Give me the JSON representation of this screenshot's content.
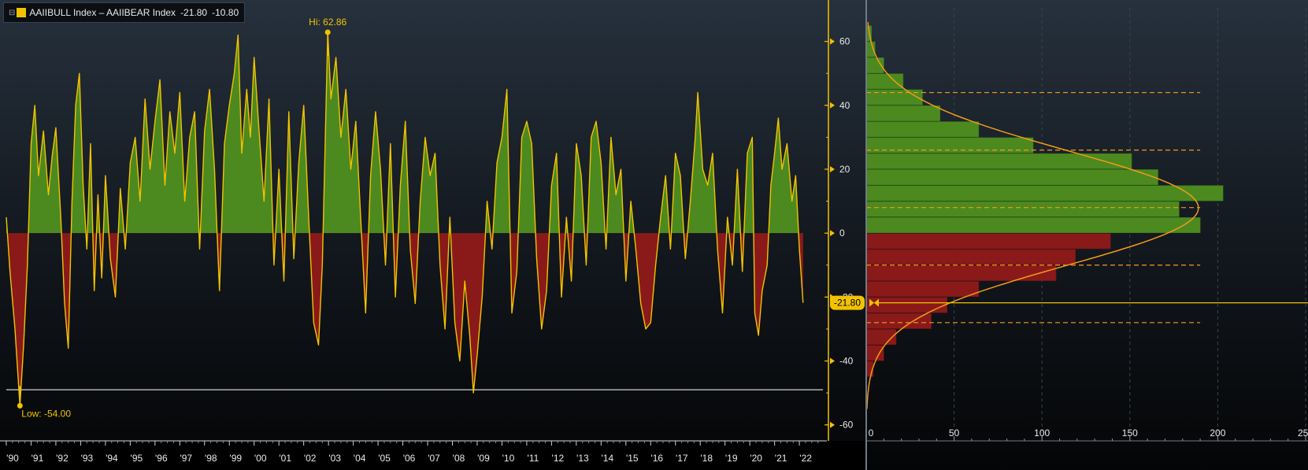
{
  "legend": {
    "expand_glyph": "⊟",
    "title": "AAIIBULL Index – AAIIBEAR Index",
    "last_value": "-21.80",
    "second_value": "-10.80",
    "swatch_color": "#f2c200"
  },
  "colors": {
    "series": "#f2c200",
    "positive_fill": "#4c8a1f",
    "negative_fill": "#8a1a1a",
    "curve": "#f29a1a",
    "axis": "#f2c200"
  },
  "chart_data": [
    {
      "type": "line",
      "series_name": "AAIIBULL Index – AAIIBEAR Index",
      "x_tick_labels": [
        "'90",
        "'91",
        "'92",
        "'93",
        "'94",
        "'95",
        "'96",
        "'97",
        "'98",
        "'99",
        "'00",
        "'01",
        "'02",
        "'03",
        "'04",
        "'05",
        "'06",
        "'07",
        "'08",
        "'09",
        "'10",
        "'11",
        "'12",
        "'13",
        "'14",
        "'15",
        "'16",
        "'17",
        "'18",
        "'19",
        "'20",
        "'21",
        "'22"
      ],
      "x_range": [
        1990.0,
        2022.0
      ],
      "ylim": [
        -65,
        70
      ],
      "y_ticks": [
        -60,
        -40,
        -20,
        0,
        20,
        40,
        60
      ],
      "y_tick_labels": [
        "-60",
        "-40",
        "-20",
        "0",
        "20",
        "40",
        "60"
      ],
      "fill_above_zero": true,
      "fill_below_zero": true,
      "annotations": [
        {
          "label": "Hi: 62.86",
          "x": 2002.97,
          "y": 62.86
        },
        {
          "label": "Low: -54.00",
          "x": 1990.55,
          "y": -54.0
        }
      ],
      "last_value": -21.8,
      "last_value_label": "-21.80",
      "reference_line_y": -49,
      "points": [
        [
          1990.0,
          5
        ],
        [
          1990.15,
          -12
        ],
        [
          1990.35,
          -30
        ],
        [
          1990.55,
          -54
        ],
        [
          1990.7,
          -35
        ],
        [
          1990.85,
          -10
        ],
        [
          1991.0,
          28
        ],
        [
          1991.15,
          40
        ],
        [
          1991.3,
          18
        ],
        [
          1991.5,
          32
        ],
        [
          1991.7,
          12
        ],
        [
          1991.85,
          24
        ],
        [
          1992.0,
          33
        ],
        [
          1992.2,
          5
        ],
        [
          1992.35,
          -22
        ],
        [
          1992.5,
          -36
        ],
        [
          1992.65,
          10
        ],
        [
          1992.8,
          40
        ],
        [
          1992.95,
          50
        ],
        [
          1993.1,
          15
        ],
        [
          1993.25,
          -5
        ],
        [
          1993.4,
          28
        ],
        [
          1993.55,
          -18
        ],
        [
          1993.7,
          12
        ],
        [
          1993.85,
          -14
        ],
        [
          1994.0,
          18
        ],
        [
          1994.2,
          -8
        ],
        [
          1994.4,
          -20
        ],
        [
          1994.6,
          14
        ],
        [
          1994.8,
          -5
        ],
        [
          1995.0,
          22
        ],
        [
          1995.2,
          30
        ],
        [
          1995.4,
          10
        ],
        [
          1995.6,
          42
        ],
        [
          1995.8,
          20
        ],
        [
          1996.0,
          35
        ],
        [
          1996.2,
          48
        ],
        [
          1996.4,
          15
        ],
        [
          1996.6,
          38
        ],
        [
          1996.8,
          25
        ],
        [
          1997.0,
          44
        ],
        [
          1997.2,
          10
        ],
        [
          1997.4,
          30
        ],
        [
          1997.6,
          38
        ],
        [
          1997.8,
          -5
        ],
        [
          1998.0,
          32
        ],
        [
          1998.2,
          45
        ],
        [
          1998.4,
          20
        ],
        [
          1998.6,
          -18
        ],
        [
          1998.8,
          28
        ],
        [
          1999.0,
          40
        ],
        [
          1999.2,
          50
        ],
        [
          1999.35,
          62
        ],
        [
          1999.5,
          25
        ],
        [
          1999.7,
          45
        ],
        [
          1999.85,
          30
        ],
        [
          2000.0,
          55
        ],
        [
          2000.2,
          32
        ],
        [
          2000.4,
          10
        ],
        [
          2000.6,
          42
        ],
        [
          2000.8,
          -10
        ],
        [
          2001.0,
          20
        ],
        [
          2001.2,
          -15
        ],
        [
          2001.4,
          38
        ],
        [
          2001.6,
          -8
        ],
        [
          2001.8,
          22
        ],
        [
          2002.0,
          40
        ],
        [
          2002.2,
          5
        ],
        [
          2002.4,
          -28
        ],
        [
          2002.6,
          -35
        ],
        [
          2002.75,
          -10
        ],
        [
          2002.97,
          62.86
        ],
        [
          2003.1,
          42
        ],
        [
          2003.3,
          55
        ],
        [
          2003.5,
          30
        ],
        [
          2003.7,
          45
        ],
        [
          2003.9,
          20
        ],
        [
          2004.1,
          35
        ],
        [
          2004.3,
          5
        ],
        [
          2004.5,
          -25
        ],
        [
          2004.7,
          18
        ],
        [
          2004.9,
          38
        ],
        [
          2005.1,
          20
        ],
        [
          2005.3,
          -10
        ],
        [
          2005.5,
          28
        ],
        [
          2005.7,
          -20
        ],
        [
          2005.9,
          15
        ],
        [
          2006.1,
          35
        ],
        [
          2006.3,
          -5
        ],
        [
          2006.5,
          -22
        ],
        [
          2006.7,
          10
        ],
        [
          2006.9,
          30
        ],
        [
          2007.1,
          18
        ],
        [
          2007.3,
          25
        ],
        [
          2007.5,
          -10
        ],
        [
          2007.7,
          -30
        ],
        [
          2007.9,
          5
        ],
        [
          2008.1,
          -28
        ],
        [
          2008.3,
          -40
        ],
        [
          2008.5,
          -15
        ],
        [
          2008.7,
          -32
        ],
        [
          2008.85,
          -50
        ],
        [
          2009.0,
          -38
        ],
        [
          2009.2,
          -20
        ],
        [
          2009.4,
          10
        ],
        [
          2009.6,
          -5
        ],
        [
          2009.8,
          22
        ],
        [
          2010.0,
          30
        ],
        [
          2010.2,
          45
        ],
        [
          2010.4,
          -25
        ],
        [
          2010.6,
          -12
        ],
        [
          2010.8,
          30
        ],
        [
          2011.0,
          35
        ],
        [
          2011.2,
          28
        ],
        [
          2011.4,
          -8
        ],
        [
          2011.6,
          -30
        ],
        [
          2011.8,
          -18
        ],
        [
          2012.0,
          15
        ],
        [
          2012.2,
          25
        ],
        [
          2012.4,
          -20
        ],
        [
          2012.6,
          5
        ],
        [
          2012.8,
          -15
        ],
        [
          2013.0,
          28
        ],
        [
          2013.2,
          18
        ],
        [
          2013.4,
          -10
        ],
        [
          2013.6,
          30
        ],
        [
          2013.8,
          35
        ],
        [
          2014.0,
          22
        ],
        [
          2014.2,
          -5
        ],
        [
          2014.4,
          30
        ],
        [
          2014.6,
          12
        ],
        [
          2014.8,
          20
        ],
        [
          2015.0,
          -15
        ],
        [
          2015.2,
          10
        ],
        [
          2015.4,
          -5
        ],
        [
          2015.6,
          -22
        ],
        [
          2015.8,
          -30
        ],
        [
          2016.0,
          -28
        ],
        [
          2016.2,
          -10
        ],
        [
          2016.4,
          5
        ],
        [
          2016.6,
          18
        ],
        [
          2016.8,
          -5
        ],
        [
          2017.0,
          25
        ],
        [
          2017.2,
          18
        ],
        [
          2017.4,
          -8
        ],
        [
          2017.6,
          10
        ],
        [
          2017.8,
          30
        ],
        [
          2017.9,
          44
        ],
        [
          2018.1,
          20
        ],
        [
          2018.3,
          15
        ],
        [
          2018.5,
          25
        ],
        [
          2018.7,
          -5
        ],
        [
          2018.9,
          -25
        ],
        [
          2019.1,
          5
        ],
        [
          2019.3,
          -10
        ],
        [
          2019.5,
          20
        ],
        [
          2019.7,
          -12
        ],
        [
          2019.9,
          25
        ],
        [
          2020.1,
          30
        ],
        [
          2020.2,
          -25
        ],
        [
          2020.35,
          -32
        ],
        [
          2020.5,
          -18
        ],
        [
          2020.7,
          -10
        ],
        [
          2020.85,
          15
        ],
        [
          2021.0,
          25
        ],
        [
          2021.15,
          36
        ],
        [
          2021.3,
          20
        ],
        [
          2021.5,
          28
        ],
        [
          2021.7,
          10
        ],
        [
          2021.85,
          18
        ],
        [
          2022.0,
          -5
        ],
        [
          2022.15,
          -21.8
        ]
      ]
    },
    {
      "type": "bar",
      "orientation": "horizontal",
      "xlim": [
        0,
        250
      ],
      "x_ticks": [
        0,
        50,
        100,
        150,
        200,
        250
      ],
      "x_tick_labels": [
        "0",
        "50",
        "100",
        "150",
        "200",
        "250"
      ],
      "bin_width": 5,
      "bins": [
        {
          "from": 60,
          "to": 65,
          "count": 3
        },
        {
          "from": 55,
          "to": 60,
          "count": 5
        },
        {
          "from": 50,
          "to": 55,
          "count": 10
        },
        {
          "from": 45,
          "to": 50,
          "count": 21
        },
        {
          "from": 40,
          "to": 45,
          "count": 32
        },
        {
          "from": 35,
          "to": 40,
          "count": 42
        },
        {
          "from": 30,
          "to": 35,
          "count": 64
        },
        {
          "from": 25,
          "to": 30,
          "count": 95
        },
        {
          "from": 20,
          "to": 25,
          "count": 151
        },
        {
          "from": 15,
          "to": 20,
          "count": 166
        },
        {
          "from": 10,
          "to": 15,
          "count": 203
        },
        {
          "from": 5,
          "to": 10,
          "count": 178
        },
        {
          "from": 0,
          "to": 5,
          "count": 190
        },
        {
          "from": -5,
          "to": 0,
          "count": 139
        },
        {
          "from": -10,
          "to": -5,
          "count": 119
        },
        {
          "from": -15,
          "to": -10,
          "count": 108
        },
        {
          "from": -20,
          "to": -15,
          "count": 64
        },
        {
          "from": -25,
          "to": -20,
          "count": 46
        },
        {
          "from": -30,
          "to": -25,
          "count": 37
        },
        {
          "from": -35,
          "to": -30,
          "count": 17
        },
        {
          "from": -40,
          "to": -35,
          "count": 10
        },
        {
          "from": -45,
          "to": -40,
          "count": 4
        }
      ],
      "dashed_levels": [
        44,
        26,
        8,
        -10,
        -28
      ],
      "normal_fit": {
        "mean": 7.9,
        "std": 17.9,
        "peak": 189
      }
    }
  ]
}
